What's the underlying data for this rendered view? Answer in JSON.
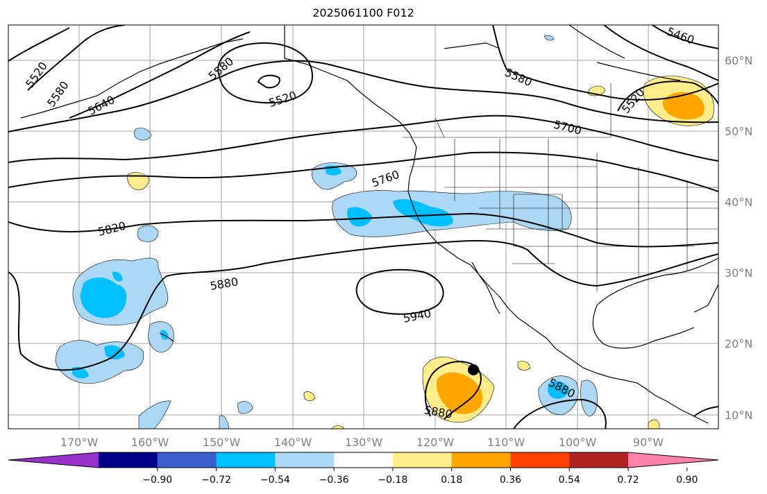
{
  "title": "2025061100 F012",
  "longitude_labels": [
    "170°W",
    "160°W",
    "150°W",
    "140°W",
    "130°W",
    "120°W",
    "110°W",
    "100°W",
    "90°W"
  ],
  "latitude_labels": [
    "60°N",
    "50°N",
    "40°N",
    "30°N",
    "20°N",
    "10°N"
  ],
  "contour_labels": [
    "5460",
    "5520",
    "5580",
    "5640",
    "5580",
    "5520",
    "5520",
    "5580",
    "5700",
    "5760",
    "5820",
    "5880",
    "5940",
    "5880",
    "5880"
  ],
  "colorbar": {
    "colors": [
      "#9932cc",
      "#00008b",
      "#3a5fcd",
      "#00bfff",
      "#add8f5",
      "#ffffff",
      "#ffec8b",
      "#ffa500",
      "#ff4000",
      "#b22222",
      "#ff82ab"
    ],
    "tick_labels": [
      "−0.90",
      "−0.72",
      "−0.54",
      "−0.36",
      "−0.18",
      "0.18",
      "0.36",
      "0.54",
      "0.72",
      "0.90"
    ]
  },
  "colors": {
    "contour": "#000000",
    "grid": "#808080",
    "light_blue": "#add8f5",
    "blue": "#00bfff",
    "yellow": "#ffec8b",
    "orange": "#ffa500"
  }
}
